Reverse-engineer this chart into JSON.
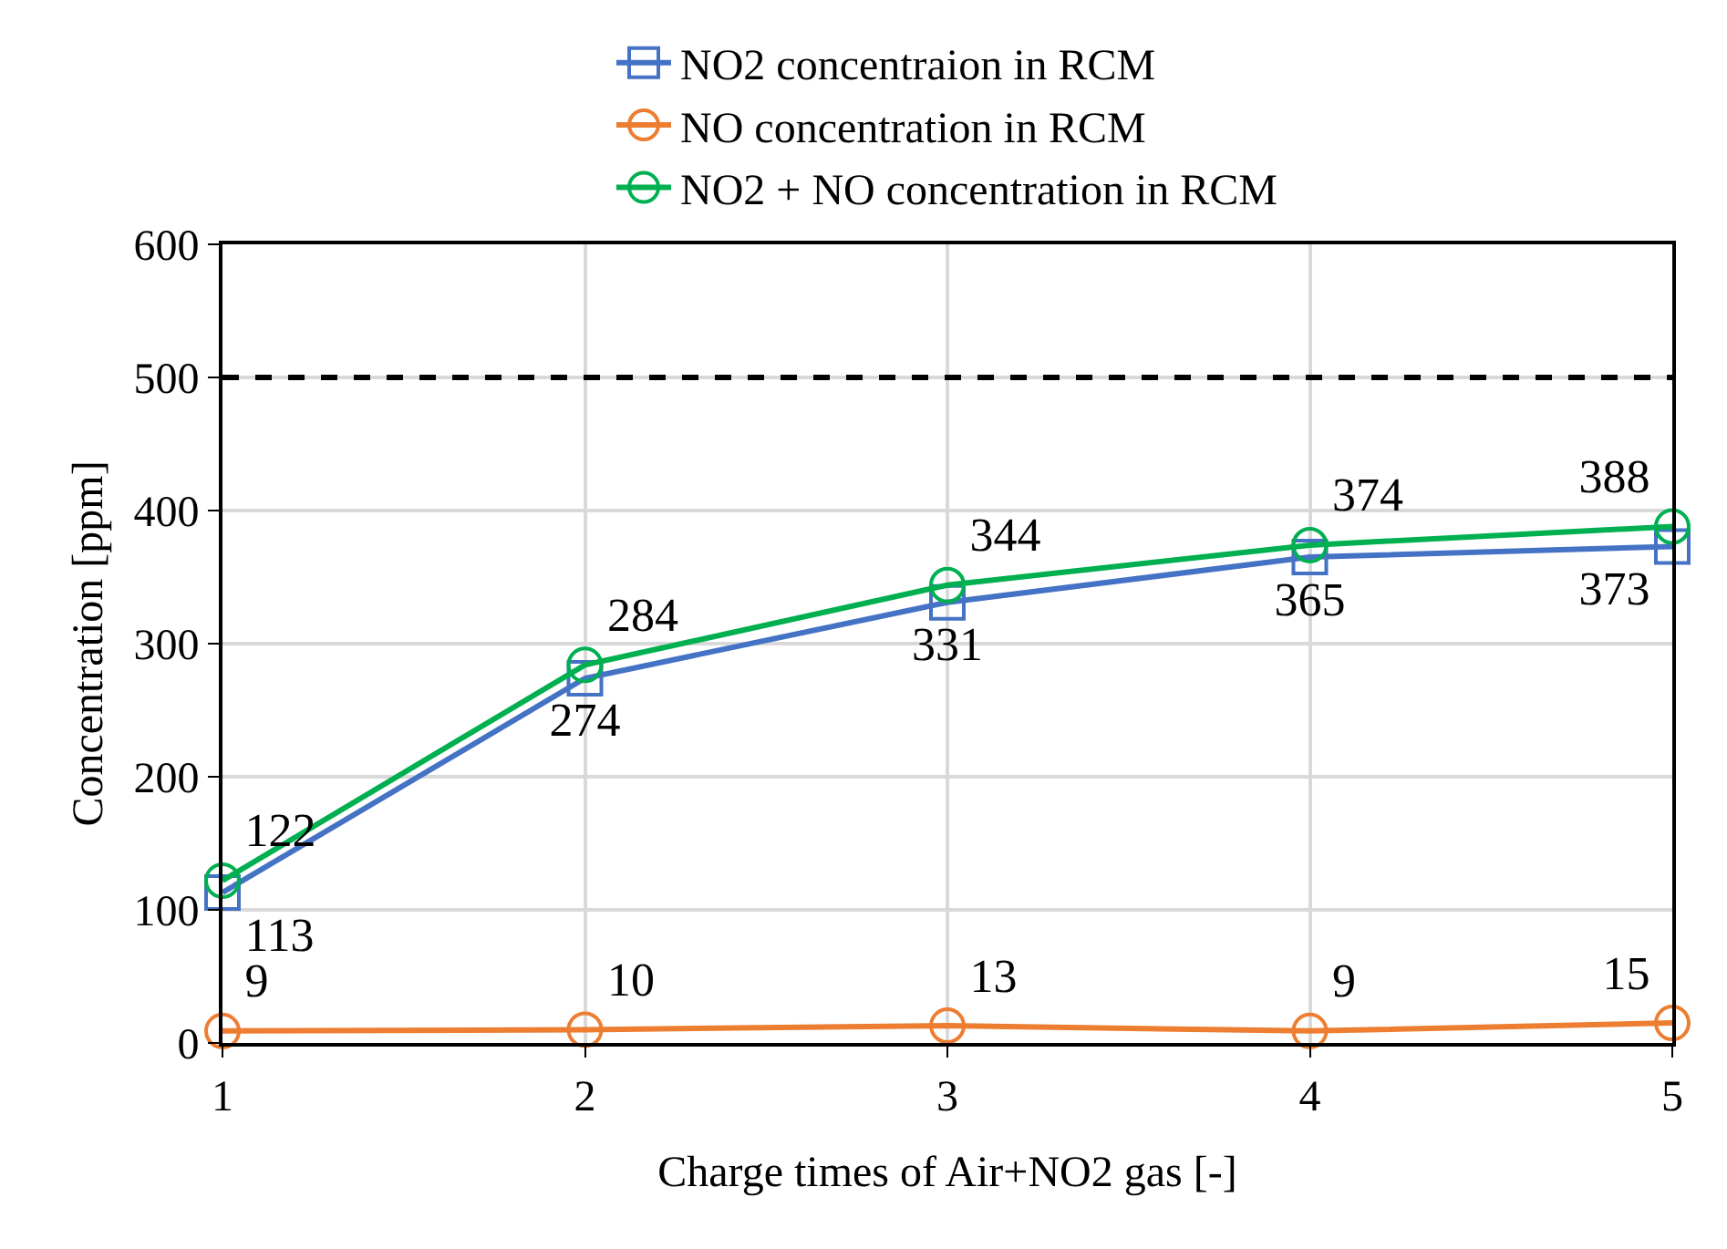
{
  "chart_data": {
    "type": "line",
    "xlabel": "Charge times of Air+NO2 gas [-]",
    "ylabel": "Concentration [ppm]",
    "x": [
      1,
      2,
      3,
      4,
      5
    ],
    "series": [
      {
        "name": "NO2 concentraion in RCM",
        "color": "#4472c4",
        "marker": "square",
        "values": [
          113,
          274,
          331,
          365,
          373
        ]
      },
      {
        "name": "NO concentration in RCM",
        "color": "#ed7d31",
        "marker": "circle",
        "values": [
          9,
          10,
          13,
          9,
          15
        ]
      },
      {
        "name": "NO2 + NO concentration in RCM",
        "color": "#00b050",
        "marker": "circle",
        "values": [
          122,
          284,
          344,
          374,
          388
        ]
      }
    ],
    "xlim": [
      1,
      5
    ],
    "xticks": [
      1,
      2,
      3,
      4,
      5
    ],
    "ylim": [
      0,
      600
    ],
    "yticks": [
      0,
      100,
      200,
      300,
      400,
      500,
      600
    ],
    "ref_lines": [
      {
        "axis": "y",
        "value": 500,
        "color": "#000000",
        "line_style": "dashed"
      }
    ],
    "data_labels": true,
    "grid": true,
    "legend": "top",
    "line_style": "solid"
  }
}
